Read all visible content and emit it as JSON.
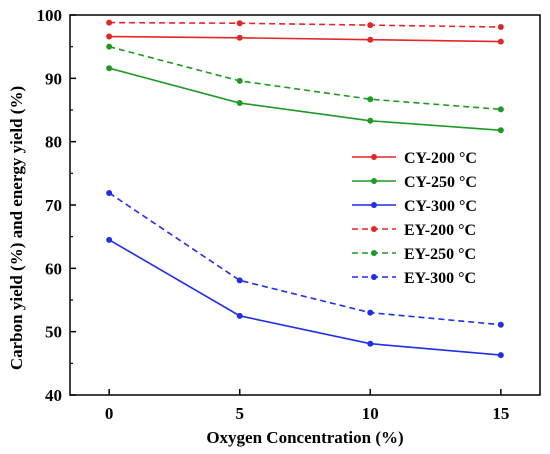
{
  "chart_data": {
    "type": "line",
    "title": "",
    "xlabel": "Oxygen Concentration (%)",
    "ylabel": "Carbon yield (%) and energy yield (%)",
    "x": [
      0,
      5,
      10,
      15
    ],
    "xlim": [
      -1.5,
      16.5
    ],
    "ylim": [
      40,
      100
    ],
    "xticks": [
      "0",
      "5",
      "10",
      "15"
    ],
    "yticks": [
      "40",
      "50",
      "60",
      "70",
      "80",
      "90",
      "100"
    ],
    "grid": false,
    "legend_position": "right",
    "series": [
      {
        "name": "CY-200 °C",
        "values": [
          96.6,
          96.4,
          96.1,
          95.8
        ],
        "color": "#e32626",
        "dashed": false
      },
      {
        "name": "CY-250 °C",
        "values": [
          91.6,
          86.1,
          83.3,
          81.8
        ],
        "color": "#1e9a24",
        "dashed": false
      },
      {
        "name": "CY-300 °C",
        "values": [
          64.5,
          52.5,
          48.1,
          46.3
        ],
        "color": "#1f2ee8",
        "dashed": false
      },
      {
        "name": "EY-200 °C",
        "values": [
          98.8,
          98.7,
          98.4,
          98.1
        ],
        "color": "#e32626",
        "dashed": true
      },
      {
        "name": "EY-250 °C",
        "values": [
          95.0,
          89.6,
          86.7,
          85.1
        ],
        "color": "#1e9a24",
        "dashed": true
      },
      {
        "name": "EY-300 °C",
        "values": [
          71.9,
          58.1,
          53.0,
          51.1
        ],
        "color": "#1f2ee8",
        "dashed": true
      }
    ]
  }
}
